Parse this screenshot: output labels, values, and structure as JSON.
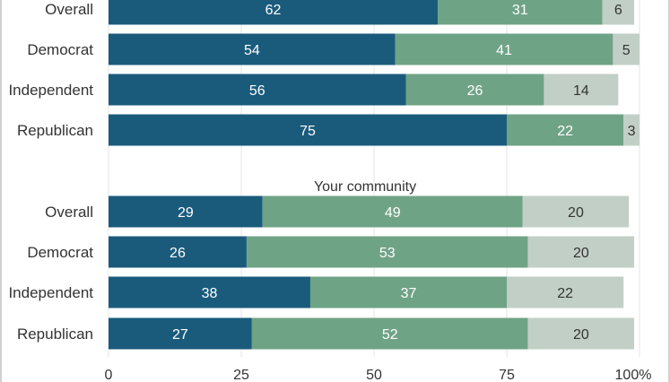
{
  "chart_data": {
    "type": "bar",
    "stacked": true,
    "orientation": "horizontal",
    "xlim": [
      0,
      100
    ],
    "x_ticks": [
      "0",
      "25",
      "50",
      "75",
      "100%"
    ],
    "grid": true,
    "colors": [
      "#1a5b7c",
      "#6fa386",
      "#c2cfc6"
    ],
    "panels": [
      {
        "title": "",
        "categories": [
          "Overall",
          "Democrat",
          "Independent",
          "Republican"
        ],
        "series": [
          {
            "values": [
              62,
              54,
              56,
              75
            ]
          },
          {
            "values": [
              31,
              41,
              26,
              22
            ]
          },
          {
            "values": [
              6,
              5,
              14,
              3
            ]
          }
        ]
      },
      {
        "title": "Your community",
        "categories": [
          "Overall",
          "Democrat",
          "Independent",
          "Republican"
        ],
        "series": [
          {
            "values": [
              29,
              26,
              38,
              27
            ]
          },
          {
            "values": [
              49,
              53,
              37,
              52
            ]
          },
          {
            "values": [
              20,
              20,
              22,
              20
            ]
          }
        ]
      }
    ]
  }
}
